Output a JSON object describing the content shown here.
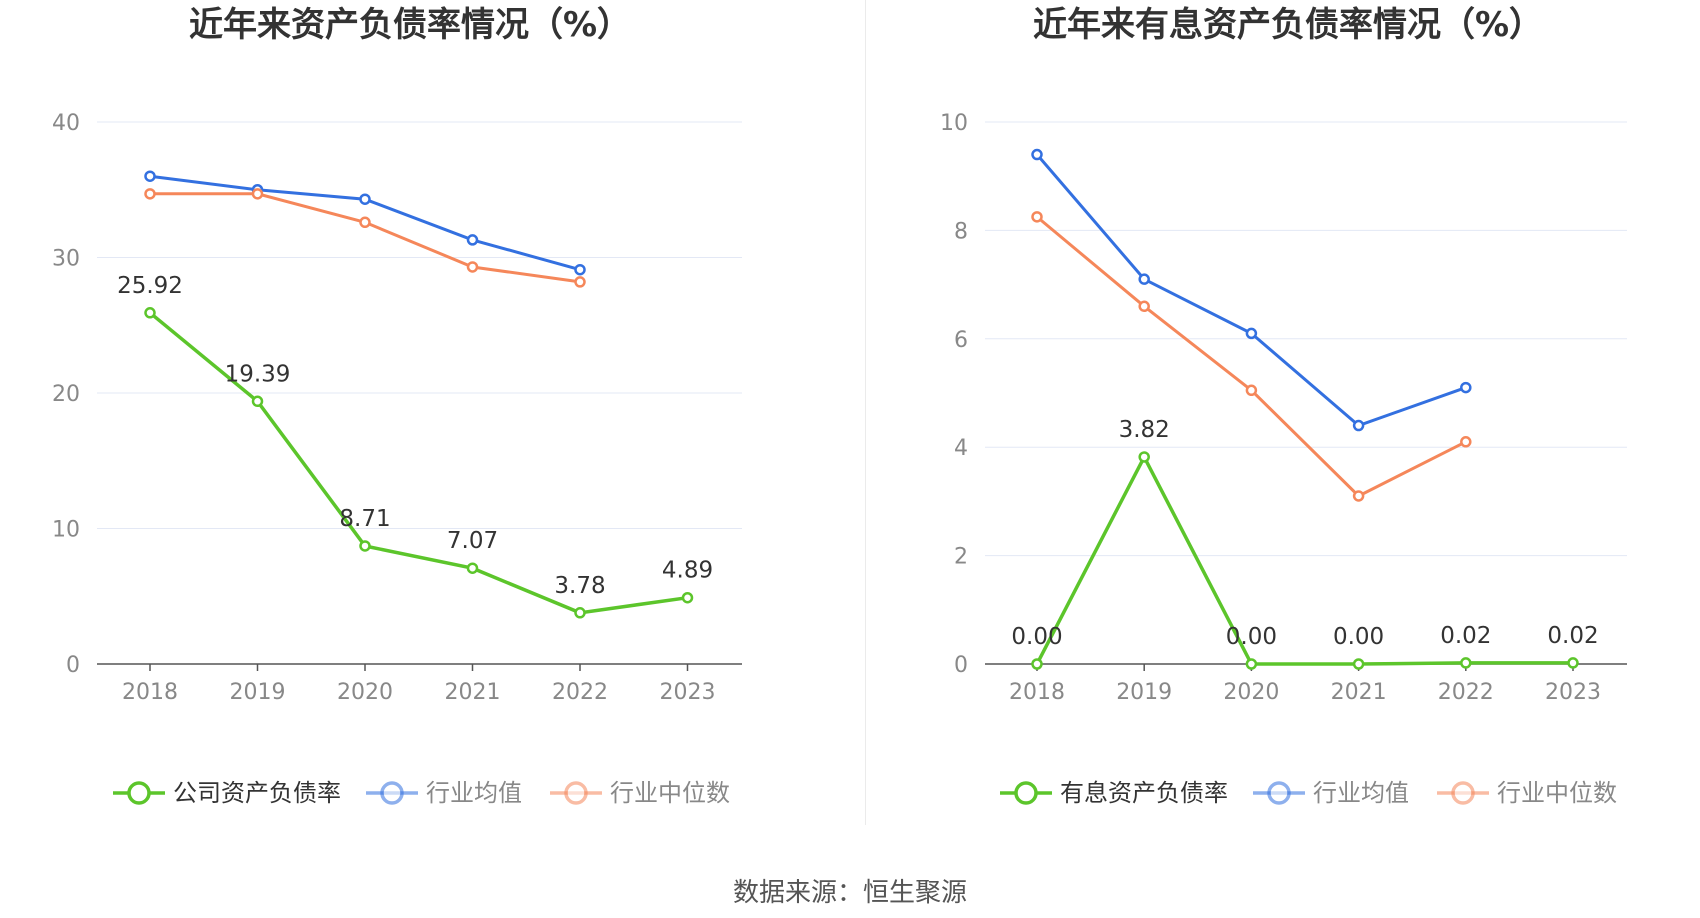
{
  "colors": {
    "company": "#5cc52b",
    "industry_avg": "#3370e0",
    "industry_median": "#f5875a",
    "grid": "#e3e8f5",
    "axis": "#555555",
    "tick_text": "#888888",
    "title_text": "#333333"
  },
  "source_text": "数据来源：恒生聚源",
  "chart_data": [
    {
      "type": "line",
      "title": "近年来资产负债率情况（%）",
      "x": [
        "2018",
        "2019",
        "2020",
        "2021",
        "2022",
        "2023"
      ],
      "ylim": [
        0,
        40
      ],
      "yticks": [
        "0",
        "10",
        "20",
        "30",
        "40"
      ],
      "grid": true,
      "legend_position": "bottom",
      "series": [
        {
          "name": "公司资产负债率",
          "key": "company",
          "values": [
            25.92,
            19.39,
            8.71,
            7.07,
            3.78,
            4.89
          ],
          "labels": [
            "25.92",
            "19.39",
            "8.71",
            "7.07",
            "3.78",
            "4.89"
          ]
        },
        {
          "name": "行业均值",
          "key": "industry_avg",
          "values": [
            36.0,
            35.0,
            34.3,
            31.3,
            29.1,
            null
          ]
        },
        {
          "name": "行业中位数",
          "key": "industry_median",
          "values": [
            34.7,
            34.7,
            32.6,
            29.3,
            28.2,
            null
          ]
        }
      ]
    },
    {
      "type": "line",
      "title": "近年来有息资产负债率情况（%）",
      "x": [
        "2018",
        "2019",
        "2020",
        "2021",
        "2022",
        "2023"
      ],
      "ylim": [
        0,
        10
      ],
      "yticks": [
        "0",
        "2",
        "4",
        "6",
        "8",
        "10"
      ],
      "grid": true,
      "legend_position": "bottom",
      "series": [
        {
          "name": "有息资产负债率",
          "key": "company",
          "values": [
            0.0,
            3.82,
            0.0,
            0.0,
            0.02,
            0.02
          ],
          "labels": [
            "0.00",
            "3.82",
            "0.00",
            "0.00",
            "0.02",
            "0.02"
          ]
        },
        {
          "name": "行业均值",
          "key": "industry_avg",
          "values": [
            9.4,
            7.1,
            6.1,
            4.4,
            5.1,
            null
          ]
        },
        {
          "name": "行业中位数",
          "key": "industry_median",
          "values": [
            8.25,
            6.6,
            5.05,
            3.1,
            4.1,
            null
          ]
        }
      ]
    }
  ]
}
